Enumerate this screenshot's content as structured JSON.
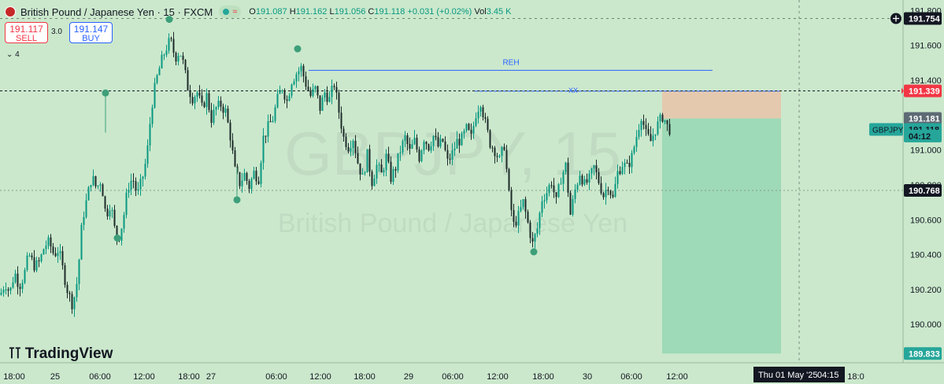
{
  "header": {
    "title": "British Pound / Japanese Yen · 15 · FXCM",
    "open_label": "O",
    "open": "191.087",
    "high_label": "H",
    "high": "191.162",
    "low_label": "L",
    "low": "191.056",
    "close_label": "C",
    "close": "191.118",
    "change": "+0.031 (+0.02%)",
    "vol_label": "Vol",
    "vol": "3.45 K",
    "replay_icon": "wave-icon"
  },
  "trade": {
    "sell_price": "191.117",
    "sell_label": "SELL",
    "buy_price": "191.147",
    "buy_label": "BUY",
    "spread": "3.0",
    "indicators_count": "4"
  },
  "branding": {
    "logo_text": "TradingView"
  },
  "colors": {
    "background": "#cbe8cc",
    "candle_up": "#089981",
    "candle_down": "#1e2b2a",
    "reh_line": "#2962ff",
    "risk_zone": "#e9c3a9",
    "reward_zone": "#8fd6b0",
    "markers": "#3d9f7a"
  },
  "chart_data": {
    "type": "candlestick",
    "symbol": "GBPJPY",
    "watermark": "GBPJPY, 15",
    "watermark_sub": "British Pound / Japanese Yen",
    "ylim": [
      189.78,
      191.86
    ],
    "y_ticks": [
      "191.800",
      "191.600",
      "191.400",
      "191.200",
      "191.000",
      "190.800",
      "190.600",
      "190.400",
      "190.200",
      "190.000"
    ],
    "x_ticks": [
      "18:00",
      "25",
      "06:00",
      "12:00",
      "18:00",
      "27",
      "06:00",
      "12:00",
      "18:00",
      "29",
      "06:00",
      "12:00",
      "18:00",
      "30",
      "06:00",
      "12:00",
      "18:00",
      "Thu 01 May '25",
      "04:15",
      "12:00",
      "18:0"
    ],
    "price_path": [
      [
        0,
        190.17
      ],
      [
        6,
        190.24
      ],
      [
        12,
        190.18
      ],
      [
        18,
        190.3
      ],
      [
        24,
        190.22
      ],
      [
        30,
        190.28
      ],
      [
        36,
        190.4
      ],
      [
        44,
        190.33
      ],
      [
        50,
        190.36
      ],
      [
        56,
        190.45
      ],
      [
        62,
        190.47
      ],
      [
        68,
        190.4
      ],
      [
        74,
        190.43
      ],
      [
        80,
        190.3
      ],
      [
        86,
        190.18
      ],
      [
        92,
        190.11
      ],
      [
        98,
        190.26
      ],
      [
        104,
        190.6
      ],
      [
        110,
        190.72
      ],
      [
        116,
        190.85
      ],
      [
        122,
        190.78
      ],
      [
        128,
        190.83
      ],
      [
        134,
        190.62
      ],
      [
        140,
        190.7
      ],
      [
        146,
        190.52
      ],
      [
        150,
        190.49
      ],
      [
        156,
        190.6
      ],
      [
        162,
        190.79
      ],
      [
        168,
        190.84
      ],
      [
        174,
        190.74
      ],
      [
        180,
        190.83
      ],
      [
        186,
        190.96
      ],
      [
        192,
        191.25
      ],
      [
        198,
        191.4
      ],
      [
        204,
        191.5
      ],
      [
        210,
        191.58
      ],
      [
        216,
        191.63
      ],
      [
        222,
        191.53
      ],
      [
        228,
        191.57
      ],
      [
        232,
        191.5
      ],
      [
        238,
        191.36
      ],
      [
        244,
        191.3
      ],
      [
        250,
        191.33
      ],
      [
        256,
        191.24
      ],
      [
        262,
        191.31
      ],
      [
        268,
        191.18
      ],
      [
        274,
        191.24
      ],
      [
        280,
        191.26
      ],
      [
        286,
        191.22
      ],
      [
        292,
        191.08
      ],
      [
        298,
        190.88
      ],
      [
        304,
        190.81
      ],
      [
        310,
        190.86
      ],
      [
        316,
        190.79
      ],
      [
        322,
        190.87
      ],
      [
        328,
        190.84
      ],
      [
        334,
        191.07
      ],
      [
        340,
        191.13
      ],
      [
        346,
        191.18
      ],
      [
        352,
        191.29
      ],
      [
        358,
        191.36
      ],
      [
        364,
        191.28
      ],
      [
        370,
        191.4
      ],
      [
        376,
        191.44
      ],
      [
        382,
        191.47
      ],
      [
        388,
        191.38
      ],
      [
        394,
        191.31
      ],
      [
        400,
        191.35
      ],
      [
        406,
        191.24
      ],
      [
        412,
        191.33
      ],
      [
        418,
        191.29
      ],
      [
        424,
        191.38
      ],
      [
        430,
        191.22
      ],
      [
        436,
        191.07
      ],
      [
        442,
        191.02
      ],
      [
        448,
        191.07
      ],
      [
        454,
        190.93
      ],
      [
        460,
        190.84
      ],
      [
        466,
        190.97
      ],
      [
        472,
        190.82
      ],
      [
        478,
        190.91
      ],
      [
        484,
        190.86
      ],
      [
        490,
        190.96
      ],
      [
        496,
        190.84
      ],
      [
        502,
        190.9
      ],
      [
        508,
        191.0
      ],
      [
        514,
        191.07
      ],
      [
        520,
        190.99
      ],
      [
        526,
        191.05
      ],
      [
        532,
        190.96
      ],
      [
        538,
        191.07
      ],
      [
        544,
        191.02
      ],
      [
        550,
        191.08
      ],
      [
        556,
        191.02
      ],
      [
        562,
        191.05
      ],
      [
        568,
        190.93
      ],
      [
        574,
        190.98
      ],
      [
        580,
        191.05
      ],
      [
        586,
        191.06
      ],
      [
        592,
        191.12
      ],
      [
        598,
        191.07
      ],
      [
        604,
        191.21
      ],
      [
        610,
        191.28
      ],
      [
        616,
        191.15
      ],
      [
        622,
        191.04
      ],
      [
        628,
        191.0
      ],
      [
        634,
        190.94
      ],
      [
        640,
        191.03
      ],
      [
        646,
        190.74
      ],
      [
        652,
        190.57
      ],
      [
        658,
        190.62
      ],
      [
        664,
        190.7
      ],
      [
        670,
        190.58
      ],
      [
        676,
        190.46
      ],
      [
        682,
        190.55
      ],
      [
        688,
        190.72
      ],
      [
        694,
        190.76
      ],
      [
        700,
        190.82
      ],
      [
        706,
        190.7
      ],
      [
        712,
        190.84
      ],
      [
        718,
        190.91
      ],
      [
        724,
        190.63
      ],
      [
        730,
        190.77
      ],
      [
        736,
        190.87
      ],
      [
        742,
        190.8
      ],
      [
        748,
        190.83
      ],
      [
        754,
        190.9
      ],
      [
        760,
        190.82
      ],
      [
        766,
        190.74
      ],
      [
        772,
        190.8
      ],
      [
        778,
        190.72
      ],
      [
        784,
        190.87
      ],
      [
        790,
        190.92
      ],
      [
        796,
        190.9
      ],
      [
        802,
        190.96
      ],
      [
        808,
        191.08
      ],
      [
        814,
        191.2
      ],
      [
        820,
        191.09
      ],
      [
        826,
        191.05
      ],
      [
        832,
        191.12
      ],
      [
        838,
        191.17
      ],
      [
        842,
        191.2
      ],
      [
        846,
        191.14
      ],
      [
        850,
        191.12
      ]
    ],
    "reh_label": "REH",
    "reh_price": 191.457,
    "xx_label": "XX",
    "xx_price": 191.337,
    "levels": [
      {
        "label": "191.754",
        "price": 191.754,
        "bg": "#131722",
        "fg": "#ffffff"
      },
      {
        "label": "191.339",
        "price": 191.339,
        "bg": "#f23645",
        "fg": "#ffffff"
      },
      {
        "label": "191.181",
        "price": 191.181,
        "bg": "#5d6b74",
        "fg": "#ffffff"
      },
      {
        "label": "191.118",
        "price": 191.118,
        "bg": "#26a69a",
        "fg": "#131722"
      },
      {
        "label": "04:12",
        "price": 191.08,
        "bg": "#26a69a",
        "fg": "#131722"
      },
      {
        "label": "190.768",
        "price": 190.768,
        "bg": "#131722",
        "fg": "#ffffff"
      },
      {
        "label": "189.833",
        "price": 189.833,
        "bg": "#26a69a",
        "fg": "#ffffff"
      }
    ],
    "symbol_tag": "GBPJPY",
    "position": {
      "entry": 191.181,
      "stop": 191.339,
      "target": 189.833
    },
    "swing_markers": [
      191.749,
      191.327,
      190.495,
      191.58,
      190.714,
      190.416
    ]
  }
}
